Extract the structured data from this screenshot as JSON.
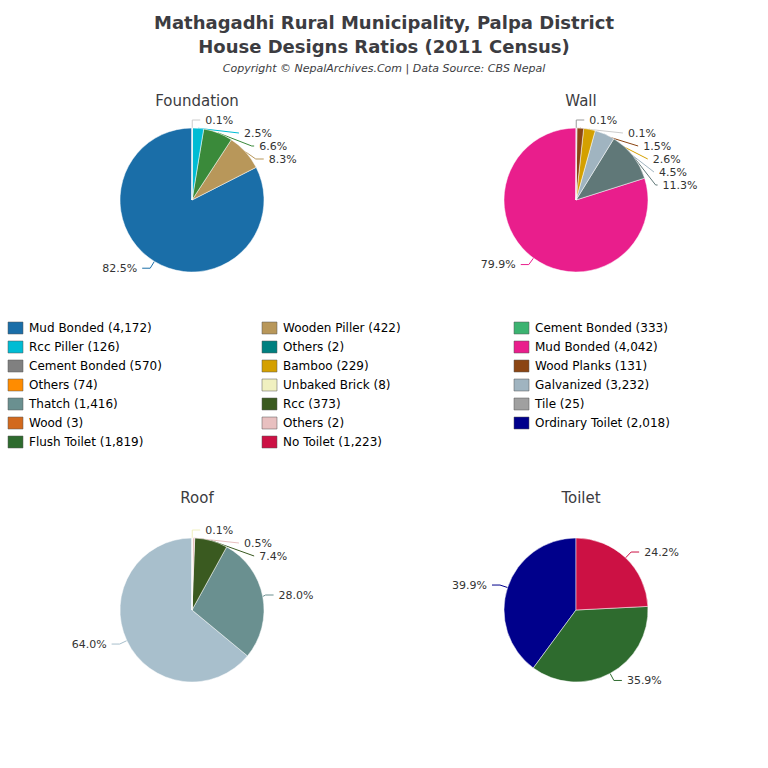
{
  "title": "Mathagadhi Rural Municipality, Palpa District",
  "subtitle": "House Designs Ratios (2011 Census)",
  "caption": "Copyright © NepalArchives.Com | Data Source: CBS Nepal",
  "legend_items": [
    {
      "label": "Mud Bonded (4,172)",
      "color": "#1a6ea8"
    },
    {
      "label": "Rcc Piller (126)",
      "color": "#00bcd4"
    },
    {
      "label": "Cement Bonded (570)",
      "color": "#808080"
    },
    {
      "label": "Others (74)",
      "color": "#ff8c00"
    },
    {
      "label": "Thatch (1,416)",
      "color": "#6a9090"
    },
    {
      "label": "Wood (3)",
      "color": "#d2691e"
    },
    {
      "label": "Flush Toilet (1,819)",
      "color": "#2e6b2e"
    },
    {
      "label": "Wooden Piller (422)",
      "color": "#b8975a"
    },
    {
      "label": "Others (2)",
      "color": "#008080"
    },
    {
      "label": "Bamboo (229)",
      "color": "#d4a000"
    },
    {
      "label": "Unbaked Brick (8)",
      "color": "#f0f0c0"
    },
    {
      "label": "Rcc (373)",
      "color": "#3a5a20"
    },
    {
      "label": "Others (2)",
      "color": "#e8c0c0"
    },
    {
      "label": "No Toilet (1,223)",
      "color": "#cc1144"
    },
    {
      "label": "Cement Bonded (333)",
      "color": "#3cb371"
    },
    {
      "label": "Mud Bonded (4,042)",
      "color": "#e91e8c"
    },
    {
      "label": "Wood Planks (131)",
      "color": "#8b4513"
    },
    {
      "label": "Galvanized (3,232)",
      "color": "#a0b4c0"
    },
    {
      "label": "Tile (25)",
      "color": "#a0a0a0"
    },
    {
      "label": "Ordinary Toilet (2,018)",
      "color": "#00008b"
    }
  ],
  "chart_data": [
    {
      "type": "pie",
      "title": "Foundation",
      "values": [
        82.5,
        8.3,
        6.6,
        2.5,
        0.1,
        0
      ],
      "value_labels": [
        "82.5%",
        "8.3%",
        "6.6%",
        "2.5%",
        "0.1%",
        null
      ],
      "colors": [
        "#1a6ea8",
        "#b8975a",
        "#3a8a3a",
        "#00bcd4",
        "#cccccc",
        "#999999"
      ],
      "data_labels": true
    },
    {
      "type": "pie",
      "title": "Wall",
      "values": [
        79.9,
        11.3,
        4.5,
        2.6,
        1.5,
        0.1,
        0.1
      ],
      "value_labels": [
        "79.9%",
        "11.3%",
        "4.5%",
        "2.6%",
        "1.5%",
        "0.1%",
        "0.1%"
      ],
      "colors": [
        "#e91e8c",
        "#607878",
        "#a0b4c0",
        "#d4a000",
        "#8b4513",
        "#cccccc",
        "#999999"
      ],
      "data_labels": true
    },
    {
      "type": "pie",
      "title": "Roof",
      "values": [
        64.0,
        28.0,
        7.4,
        0.5,
        0.1,
        0
      ],
      "value_labels": [
        "64.0%",
        "28.0%",
        "7.4%",
        "0.5%",
        "0.1%",
        null
      ],
      "colors": [
        "#a8bfcc",
        "#6a9090",
        "#3a5a20",
        "#e8c0c0",
        "#f0f0c0",
        "#e0e0e0"
      ],
      "data_labels": true
    },
    {
      "type": "pie",
      "title": "Toilet",
      "values": [
        39.9,
        35.9,
        24.2
      ],
      "value_labels": [
        "39.9%",
        "35.9%",
        "24.2%"
      ],
      "colors": [
        "#00008b",
        "#2e6b2e",
        "#cc1144"
      ],
      "data_labels": true
    }
  ]
}
